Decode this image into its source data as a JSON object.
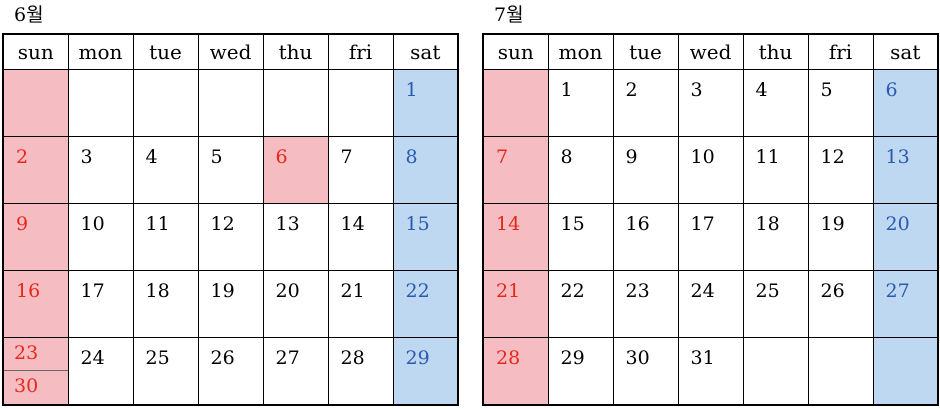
{
  "calendars": [
    {
      "title": "6월",
      "weekdays": [
        "sun",
        "mon",
        "tue",
        "wed",
        "thu",
        "fri",
        "sat"
      ],
      "rows": [
        [
          "",
          "",
          "",
          "",
          "",
          "",
          "1"
        ],
        [
          "2",
          "3",
          "4",
          "5",
          "6",
          "7",
          "8"
        ],
        [
          "9",
          "10",
          "11",
          "12",
          "13",
          "14",
          "15"
        ],
        [
          "16",
          "17",
          "18",
          "19",
          "20",
          "21",
          "22"
        ],
        [
          "23",
          "24",
          "25",
          "26",
          "27",
          "28",
          "29"
        ]
      ],
      "extra_sun": "30",
      "holidays": [
        "6"
      ]
    },
    {
      "title": "7월",
      "weekdays": [
        "sun",
        "mon",
        "tue",
        "wed",
        "thu",
        "fri",
        "sat"
      ],
      "rows": [
        [
          "",
          "1",
          "2",
          "3",
          "4",
          "5",
          "6"
        ],
        [
          "7",
          "8",
          "9",
          "10",
          "11",
          "12",
          "13"
        ],
        [
          "14",
          "15",
          "16",
          "17",
          "18",
          "19",
          "20"
        ],
        [
          "21",
          "22",
          "23",
          "24",
          "25",
          "26",
          "27"
        ],
        [
          "28",
          "29",
          "30",
          "31",
          "",
          "",
          ""
        ]
      ],
      "holidays": []
    }
  ],
  "colors": {
    "sunday_bg": "#f5bcc1",
    "saturday_bg": "#bed8f1",
    "sunday_text": "#e8271b",
    "saturday_text": "#2a59b0"
  }
}
